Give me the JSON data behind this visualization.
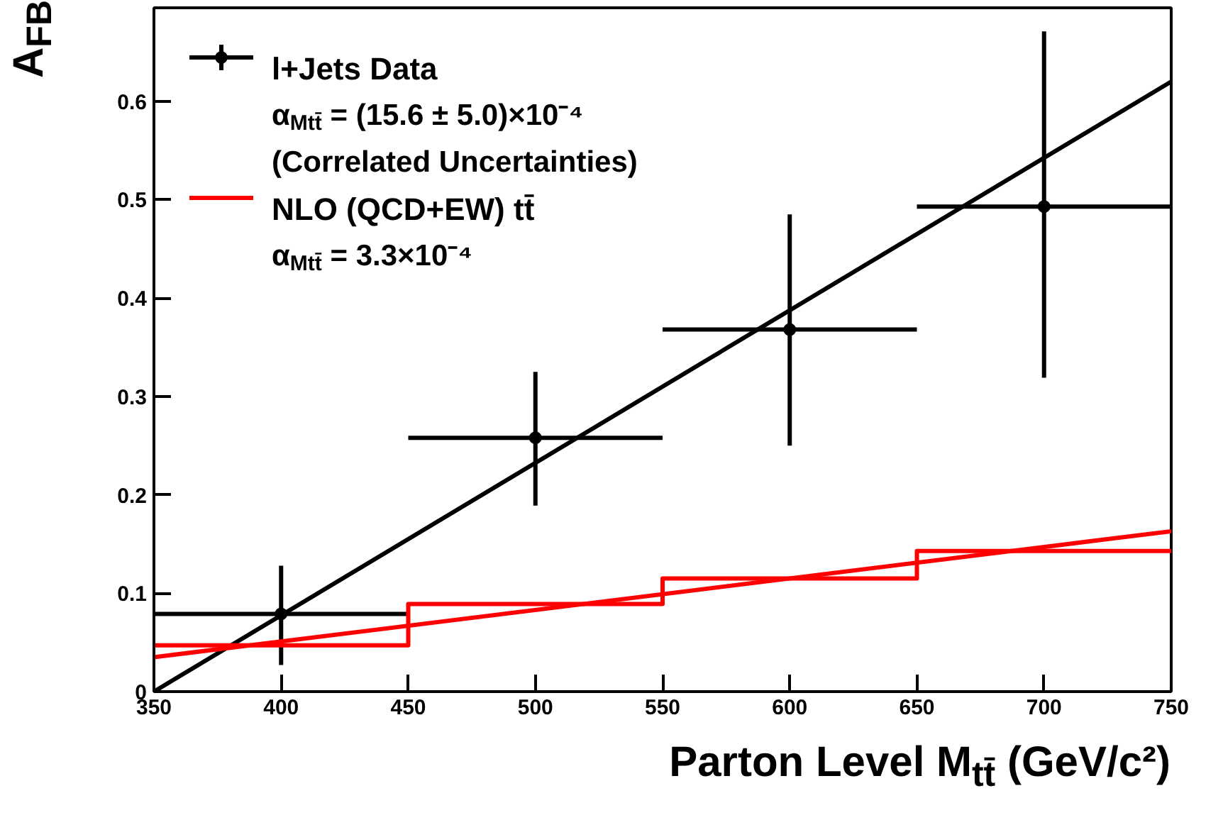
{
  "chart_data": {
    "type": "scatter",
    "xlabel": "Parton Level M$_{tt̄}$ (GeV/c²)",
    "ylabel": "A$_{FB}$",
    "xlim": [
      350,
      750
    ],
    "ylim": [
      0,
      0.695
    ],
    "xticks": [
      350,
      400,
      450,
      500,
      550,
      600,
      650,
      700,
      750
    ],
    "yticks": [
      0,
      0.1,
      0.2,
      0.3,
      0.4,
      0.5,
      0.6
    ],
    "grid": false,
    "legend": "top left",
    "annotations": [
      "α$_{Mtt̄}$ = (15.6 ± 5.0)×10⁻⁴",
      "(Correlated Uncertainties)",
      "α$_{Mtt̄}$ = 3.3×10⁻⁴"
    ],
    "series": [
      {
        "name": "l+Jets Data",
        "marker": "circle",
        "color": "#000000",
        "x": [
          400,
          500,
          600,
          700
        ],
        "values": [
          0.079,
          0.258,
          0.368,
          0.493
        ],
        "errors": [
          [
            0.027,
            0.128
          ],
          [
            0.189,
            0.325
          ],
          [
            0.25,
            0.485
          ],
          [
            0.319,
            0.671
          ]
        ],
        "xerrors": [
          [
            350,
            450
          ],
          [
            450,
            550
          ],
          [
            550,
            650
          ],
          [
            650,
            750
          ]
        ]
      },
      {
        "type": "line",
        "color": "#000000",
        "x": [
          350,
          750
        ],
        "values": [
          0.0,
          0.62
        ]
      },
      {
        "name": "NLO (QCD+EW) tt̄",
        "type": "histogram",
        "color": "#ff0000",
        "bins": [
          350,
          450,
          550,
          650,
          750
        ],
        "values": [
          0.047,
          0.089,
          0.115,
          0.143
        ]
      },
      {
        "type": "line",
        "color": "#ff0000",
        "x": [
          350,
          750
        ],
        "values": [
          0.035,
          0.163
        ]
      }
    ]
  }
}
